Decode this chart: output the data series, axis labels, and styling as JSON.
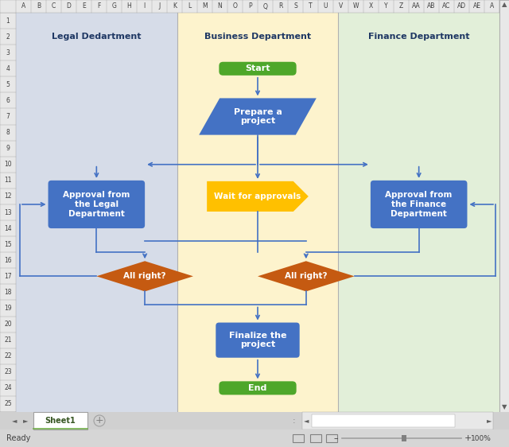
{
  "fig_width": 6.4,
  "fig_height": 5.62,
  "dpi": 100,
  "bg_color": "#f0f0f0",
  "lane_legal_color": "#d6dce8",
  "lane_business_color": "#fdf3cd",
  "lane_finance_color": "#e2efd9",
  "lane_titles": [
    "Legal Dedartment",
    "Business Department",
    "Finance Department"
  ],
  "shape_start_end_color": "#4ea72a",
  "shape_process_color": "#4472c4",
  "shape_decision_color": "#c55a11",
  "shape_wait_color": "#ffc000",
  "arrow_color": "#4472c4",
  "text_color_white": "#ffffff",
  "grid_line_color": "#d0d0d0",
  "header_color": "#e8e8e8",
  "tab_active_color": "#70ad47",
  "tab_text_color": "#375623",
  "scrollbar_color": "#c0c0c0"
}
